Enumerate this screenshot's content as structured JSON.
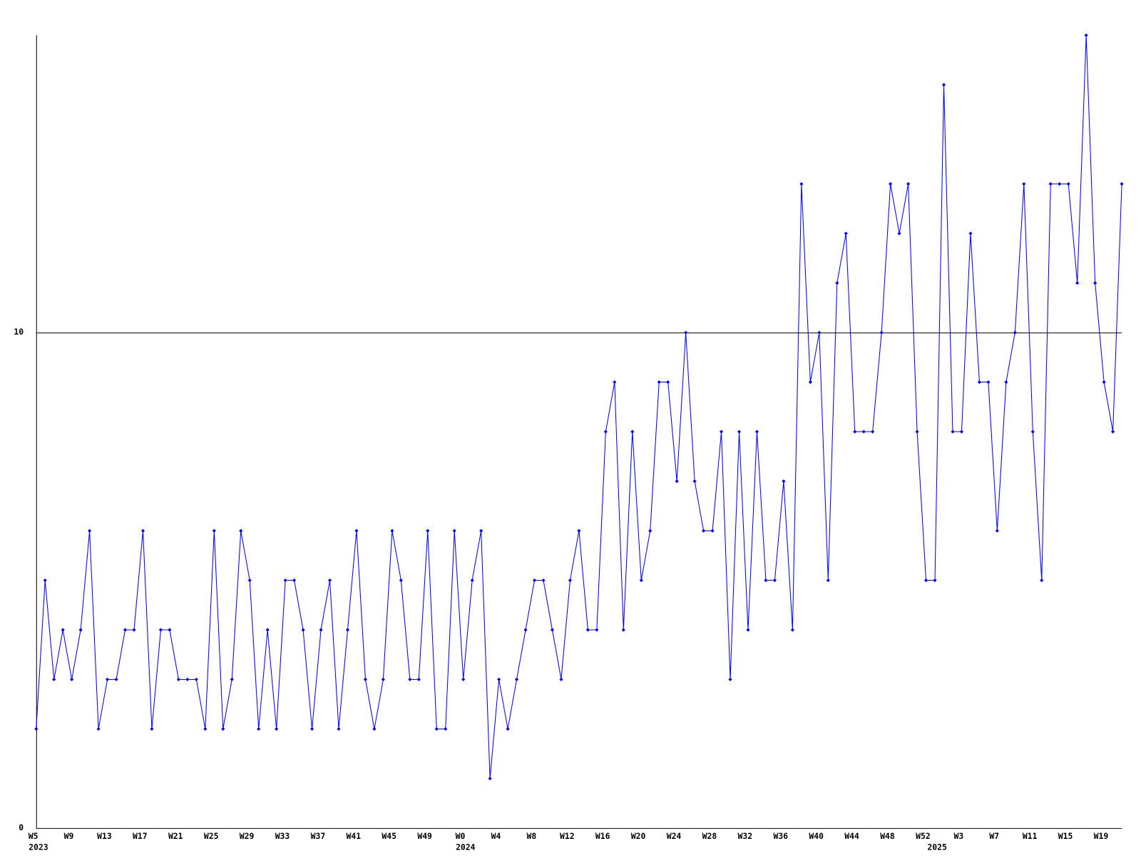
{
  "chart_data": {
    "type": "line",
    "categories": [
      "W5",
      null,
      null,
      null,
      "W9",
      null,
      null,
      null,
      "W13",
      null,
      null,
      null,
      "W17",
      null,
      null,
      null,
      "W21",
      null,
      null,
      null,
      "W25",
      null,
      null,
      null,
      "W29",
      null,
      null,
      null,
      "W33",
      null,
      null,
      null,
      "W37",
      null,
      null,
      null,
      "W41",
      null,
      null,
      null,
      "W45",
      null,
      null,
      null,
      "W49",
      null,
      null,
      null,
      "W0",
      null,
      null,
      null,
      "W4",
      null,
      null,
      null,
      "W8",
      null,
      null,
      null,
      "W12",
      null,
      null,
      null,
      "W16",
      null,
      null,
      null,
      "W20",
      null,
      null,
      null,
      "W24",
      null,
      null,
      null,
      "W28",
      null,
      null,
      null,
      "W32",
      null,
      null,
      null,
      "W36",
      null,
      null,
      null,
      "W40",
      null,
      null,
      null,
      "W44",
      null,
      null,
      null,
      "W48",
      null,
      null,
      null,
      "W52",
      null,
      null,
      null,
      "W3",
      null,
      null,
      null,
      "W7",
      null,
      null,
      null,
      "W11",
      null,
      null,
      null,
      "W15",
      null,
      null,
      null,
      "W19",
      null,
      null
    ],
    "year_ticks": [
      {
        "value": 0,
        "label": "2023"
      },
      {
        "value": 48,
        "label": "2024"
      },
      {
        "value": 101,
        "label": "2025"
      }
    ],
    "series": [
      {
        "color": "#0000ff",
        "values": [
          2,
          5,
          3,
          4,
          3,
          4,
          6,
          2,
          3,
          3,
          4,
          4,
          6,
          2,
          4,
          4,
          3,
          3,
          3,
          2,
          6,
          2,
          3,
          6,
          5,
          2,
          4,
          2,
          5,
          5,
          4,
          2,
          4,
          5,
          2,
          4,
          6,
          3,
          2,
          3,
          6,
          5,
          3,
          3,
          6,
          2,
          2,
          6,
          3,
          5,
          6,
          1,
          3,
          2,
          3,
          4,
          5,
          5,
          4,
          3,
          5,
          6,
          4,
          4,
          8,
          9,
          4,
          8,
          5,
          6,
          9,
          9,
          7,
          10,
          7,
          6,
          6,
          8,
          3,
          8,
          4,
          8,
          5,
          5,
          7,
          4,
          13,
          9,
          10,
          5,
          11,
          12,
          8,
          8,
          8,
          10,
          13,
          12,
          13,
          8,
          5,
          5,
          15,
          8,
          8,
          12,
          9,
          9,
          6,
          9,
          10,
          13,
          8,
          5,
          13,
          13,
          13,
          11,
          16,
          11,
          9,
          8,
          13
        ]
      }
    ],
    "ylim": [
      0,
      16
    ],
    "yticks": [
      0,
      10
    ],
    "grid": true
  }
}
